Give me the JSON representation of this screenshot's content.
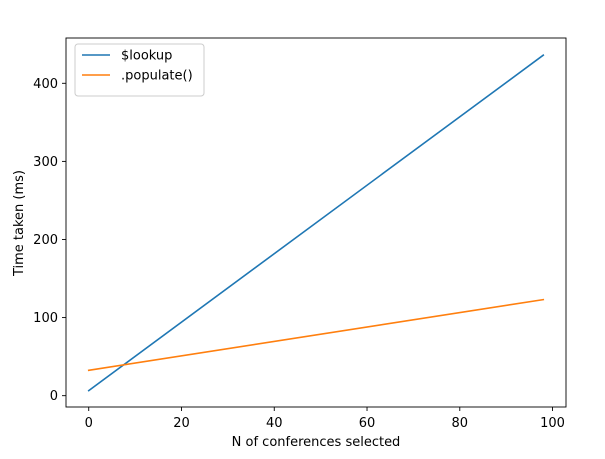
{
  "chart_data": {
    "type": "line",
    "xlabel": "N of conferences selected",
    "ylabel": "Time taken (ms)",
    "xlim": [
      -4.9,
      102.9
    ],
    "ylim": [
      -14.5,
      458
    ],
    "xticks": [
      0,
      20,
      40,
      60,
      80,
      100
    ],
    "yticks": [
      0,
      100,
      200,
      300,
      400
    ],
    "grid": false,
    "legend_position": "upper-left",
    "series": [
      {
        "name": "$lookup",
        "color": "#1f77b4",
        "x": [
          0,
          98
        ],
        "y": [
          6.5,
          436
        ]
      },
      {
        "name": ".populate()",
        "color": "#ff7f0e",
        "x": [
          0,
          98
        ],
        "y": [
          32.5,
          123
        ]
      }
    ]
  }
}
